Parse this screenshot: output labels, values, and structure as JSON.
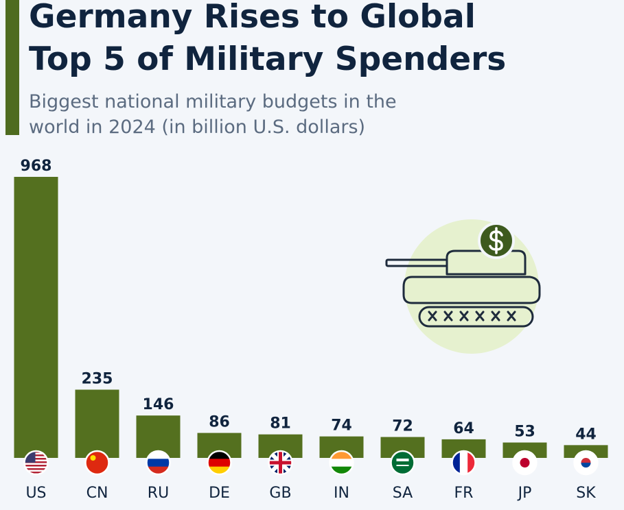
{
  "chart_data": {
    "type": "bar",
    "title": "Germany Rises to Global Top 5 of Military Spenders",
    "subtitle": "Biggest national military budgets in the world in 2024 (in billion U.S. dollars)",
    "categories": [
      "US",
      "CN",
      "RU",
      "DE",
      "GB",
      "IN",
      "SA",
      "FR",
      "JP",
      "SK"
    ],
    "values": [
      968,
      235,
      146,
      86,
      81,
      74,
      72,
      64,
      53,
      44
    ],
    "color": "#54701f"
  }
}
